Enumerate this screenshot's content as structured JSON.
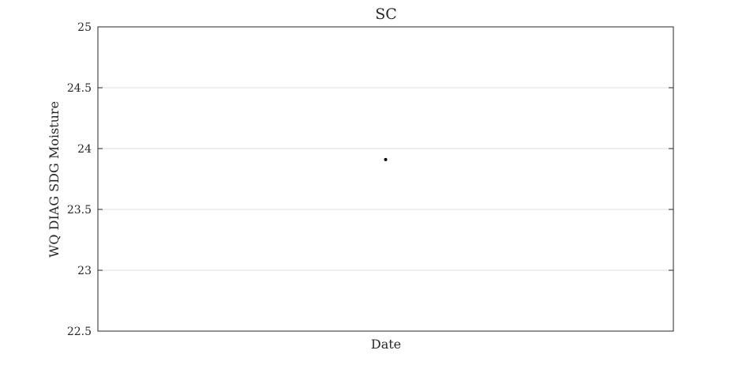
{
  "chart_data": {
    "type": "scatter",
    "title": "SC",
    "xlabel": "Date",
    "ylabel": "WQ DIAG SDG Moisture",
    "ylim": [
      22.5,
      25
    ],
    "yticks": [
      22.5,
      23,
      23.5,
      24,
      24.5,
      25
    ],
    "ytick_labels": [
      "22.5",
      "23",
      "23.5",
      "24",
      "24.5",
      "25"
    ],
    "x_ticks_shown": false,
    "grid": "horizontal",
    "series": [
      {
        "x": [
          0.5
        ],
        "y": [
          23.91
        ]
      }
    ],
    "colors": {
      "point": "#000000",
      "grid": "#dfdfdf",
      "axes": "#262626"
    }
  }
}
